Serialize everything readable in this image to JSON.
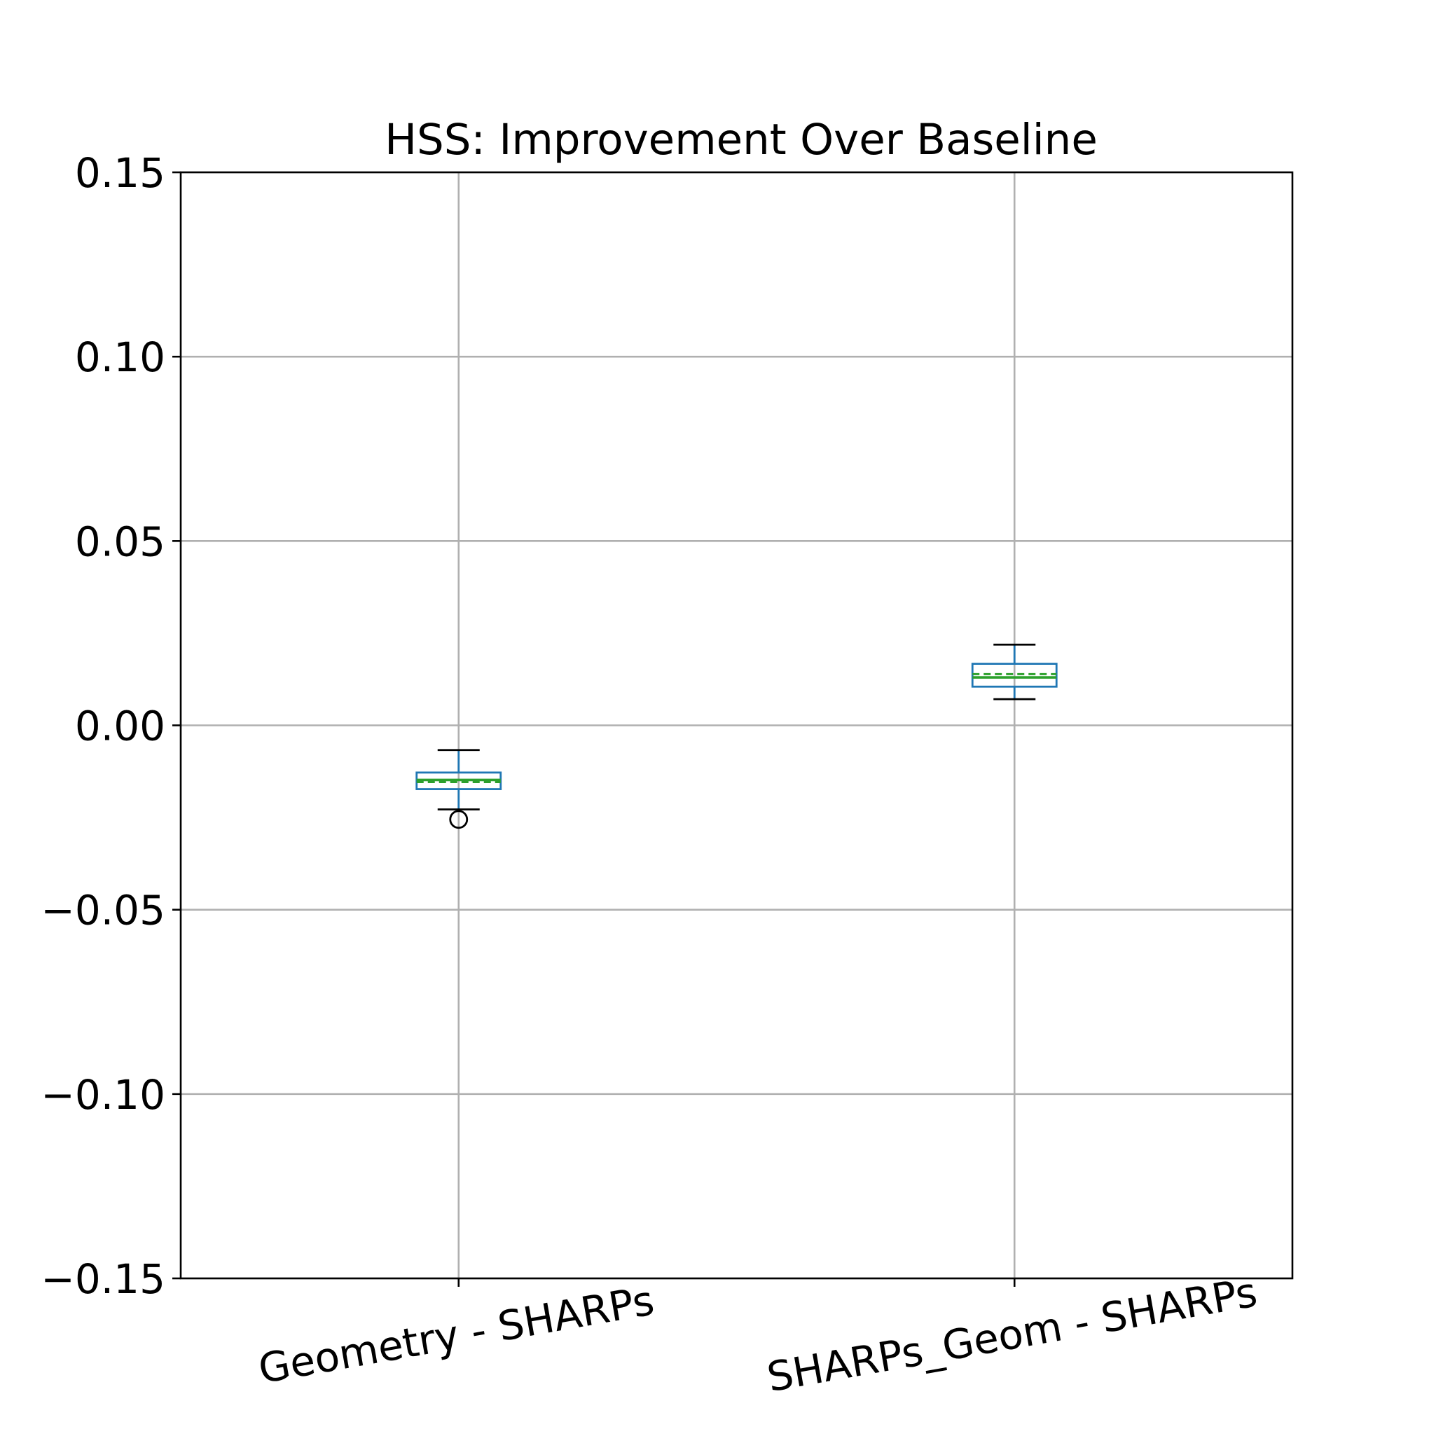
{
  "chart_data": {
    "type": "box",
    "title": "HSS: Improvement Over Baseline",
    "xlabel": "",
    "ylabel": "",
    "ylim": [
      -0.15,
      0.15
    ],
    "yticks": [
      -0.15,
      -0.1,
      -0.05,
      0.0,
      0.05,
      0.1,
      0.15
    ],
    "ytick_labels": [
      "−0.15",
      "−0.10",
      "−0.05",
      "0.00",
      "0.05",
      "0.10",
      "0.15"
    ],
    "grid": true,
    "categories": [
      "Geometry - SHARPs",
      "SHARPs_Geom - SHARPs"
    ],
    "boxes": [
      {
        "whisker_low": -0.0228,
        "q1": -0.0173,
        "median": -0.0148,
        "mean": -0.0154,
        "q3": -0.0128,
        "whisker_high": -0.0067,
        "outliers": [
          -0.0255
        ]
      },
      {
        "whisker_low": 0.0071,
        "q1": 0.0105,
        "median": 0.013,
        "mean": 0.0139,
        "q3": 0.0167,
        "whisker_high": 0.0219,
        "outliers": []
      }
    ],
    "colors": {
      "box": "#1f77b4",
      "median": "#2ca02c",
      "mean": "#2ca02c",
      "whisker_cap": "#000000",
      "flier": "#000000",
      "grid": "#b0b0b0"
    }
  }
}
